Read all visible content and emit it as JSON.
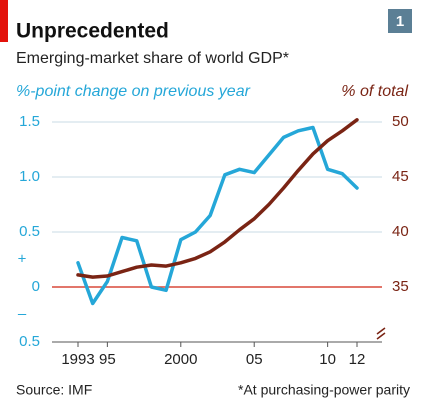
{
  "chart_data": {
    "type": "line",
    "title": "Unprecedented",
    "badge": "1",
    "subtitle": "Emerging-market share of world GDP*",
    "y_label": "%-point change on previous year",
    "y2_label": "% of total",
    "sign_labels": [
      "+",
      "–"
    ],
    "source": "Source: IMF",
    "note": "*At purchasing-power parity",
    "x": [
      1993,
      1994,
      1995,
      1996,
      1997,
      1998,
      1999,
      2000,
      2001,
      2002,
      2003,
      2004,
      2005,
      2006,
      2007,
      2008,
      2009,
      2010,
      2011,
      2012
    ],
    "xlim": [
      1993,
      2012
    ],
    "xticks": [
      {
        "value": 1993,
        "label": "1993"
      },
      {
        "value": 1995,
        "label": "95"
      },
      {
        "value": 2000,
        "label": "2000"
      },
      {
        "value": 2005,
        "label": "05"
      },
      {
        "value": 2010,
        "label": "10"
      },
      {
        "value": 2012,
        "label": "12"
      }
    ],
    "ylim": [
      -0.5,
      1.5
    ],
    "yticks": [
      {
        "value": -0.5,
        "label": "0.5"
      },
      0,
      {
        "value": 0.5,
        "label": "0.5"
      },
      {
        "value": 1,
        "label": "1.0"
      },
      {
        "value": 1.5,
        "label": "1.5"
      }
    ],
    "y2lim": [
      30,
      50
    ],
    "y2ticks": [
      35,
      40,
      45,
      50
    ],
    "grid": true,
    "series": [
      {
        "name": "%-point change on previous year",
        "color": "#25a7d8",
        "values": [
          0.22,
          -0.15,
          0.05,
          0.45,
          0.42,
          0.0,
          -0.03,
          0.43,
          0.5,
          0.65,
          1.02,
          1.07,
          1.04,
          1.2,
          1.36,
          1.42,
          1.45,
          1.07,
          1.03,
          0.9
        ]
      },
      {
        "name": "% of total",
        "color": "#7a2414",
        "axis": "y2",
        "values": [
          36.1,
          35.9,
          36.0,
          36.4,
          36.8,
          37.0,
          36.9,
          37.2,
          37.6,
          38.2,
          39.1,
          40.2,
          41.2,
          42.5,
          44.0,
          45.6,
          47.1,
          48.3,
          49.2,
          50.2
        ]
      }
    ]
  }
}
